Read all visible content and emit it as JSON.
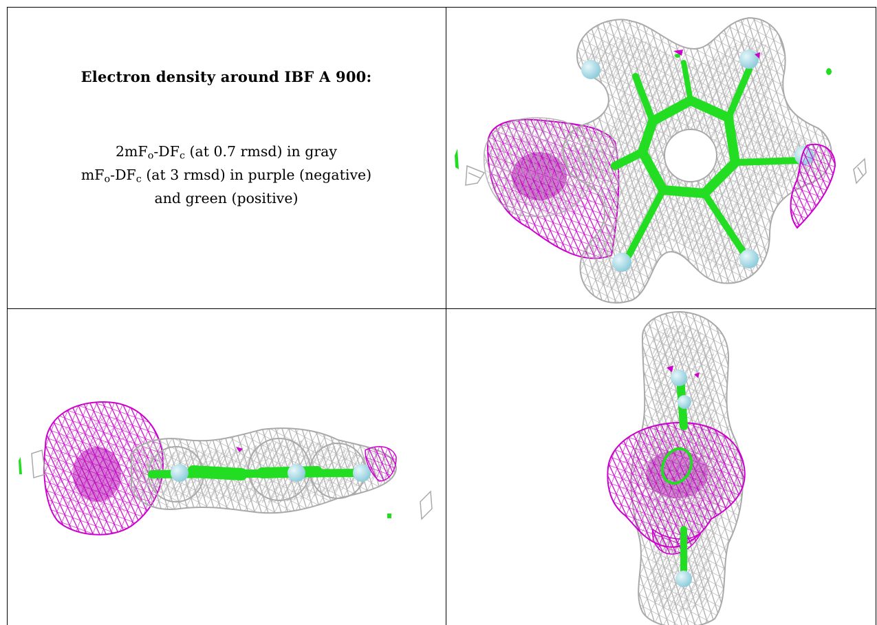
{
  "caption": {
    "title": "Electron density around IBF A 900:",
    "line1": {
      "a": "2mF",
      "a_sub": "o",
      "b": "-DF",
      "b_sub": "c",
      "rest": " (at 0.7 rmsd) in gray"
    },
    "line2": {
      "a": "mF",
      "a_sub": "o",
      "b": "-DF",
      "b_sub": "c",
      "rest": " (at 3 rmsd) in purple (negative)"
    },
    "line3": "and green (positive)"
  },
  "colors": {
    "map_2fofc": "#a9a9a9",
    "map_fofc_negative": "#cc00cc",
    "map_fofc_positive": "#22dd22",
    "atom_hydrogen_like": "#a6dde8",
    "border": "#000000"
  },
  "panels": [
    {
      "name": "view-front",
      "content": "molecular-density-render"
    },
    {
      "name": "view-side",
      "content": "molecular-density-render"
    },
    {
      "name": "view-edge",
      "content": "molecular-density-render"
    }
  ]
}
